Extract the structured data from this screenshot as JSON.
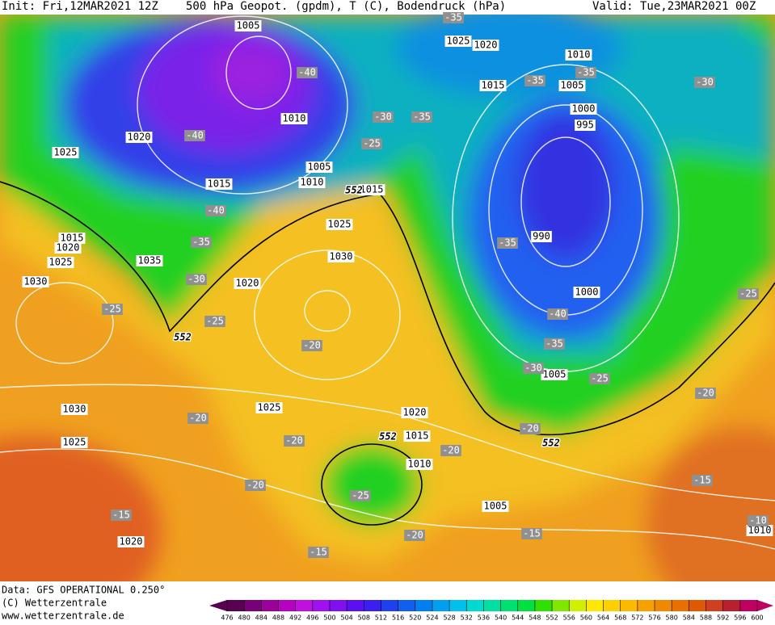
{
  "header": {
    "init": "Init: Fri,12MAR2021 12Z",
    "title": "500 hPa Geopot. (gpdm), T (C), Bodendruck (hPa)",
    "valid": "Valid: Tue,23MAR2021 00Z"
  },
  "footer": {
    "data": "Data: GFS OPERATIONAL 0.250°",
    "copyright": "(C) Wetterzentrale",
    "url": "www.wetterzentrale.de"
  },
  "colorbar": {
    "ticks": [
      476,
      480,
      484,
      488,
      492,
      496,
      500,
      504,
      508,
      512,
      516,
      520,
      524,
      528,
      532,
      536,
      540,
      544,
      548,
      552,
      556,
      560,
      564,
      568,
      572,
      576,
      580,
      584,
      588,
      592,
      596,
      600
    ],
    "colors": [
      "#5a0050",
      "#780078",
      "#9a009a",
      "#b800c0",
      "#c010e0",
      "#a010f0",
      "#8010f0",
      "#5a10f0",
      "#3a20f0",
      "#2040f0",
      "#1060f0",
      "#0080f0",
      "#00a0f0",
      "#00c0f0",
      "#00d8d0",
      "#00e0a0",
      "#00e070",
      "#00e040",
      "#30e000",
      "#80e800",
      "#d0f000",
      "#ffe800",
      "#ffd000",
      "#ffb800",
      "#f8a000",
      "#f08800",
      "#e87000",
      "#e05800",
      "#d04020",
      "#b82030",
      "#c00060"
    ]
  },
  "pressure_labels": [
    "1005",
    "1025",
    "1020",
    "1010",
    "1015",
    "1005",
    "1000",
    "995",
    "1010",
    "1020",
    "1025",
    "1005",
    "1010",
    "1015",
    "1015",
    "1015",
    "1020",
    "1025",
    "1035",
    "1030",
    "1025",
    "990",
    "1020",
    "1030",
    "1000",
    "1005",
    "1030",
    "1025",
    "1020",
    "1025",
    "1015",
    "1010",
    "1005",
    "1020",
    "1010"
  ],
  "temperature_labels": [
    "-35",
    "-40",
    "-30",
    "-35",
    "-25",
    "-40",
    "-40",
    "-35",
    "-30",
    "-25",
    "-25",
    "-20",
    "-35",
    "-40",
    "-35",
    "-30",
    "-25",
    "-20",
    "-20",
    "-20",
    "-20",
    "-20",
    "-25",
    "-20",
    "-15",
    "-20",
    "-15",
    "-15",
    "-15",
    "-10",
    "-30",
    "-35",
    "-35",
    "-25"
  ],
  "contour_labels": [
    "552",
    "552",
    "552",
    "552"
  ]
}
